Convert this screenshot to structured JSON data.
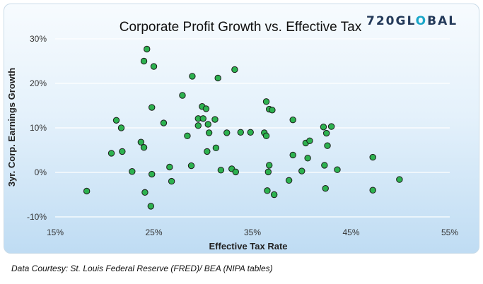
{
  "logo": {
    "pre": "720GL",
    "mark": "O",
    "post": "BAL"
  },
  "footer": {
    "source": "Data Courtesy: St. Louis Federal Reserve (FRED)/ BEA (NIPA tables)"
  },
  "colors": {
    "marker_fill": "#2db24f",
    "marker_stroke": "#1b1b1b",
    "grid": "#ffffff",
    "axis_text": "#333333",
    "logo_accent": "#1aa7c9",
    "logo_text": "#243a5a"
  },
  "chart_data": {
    "type": "scatter",
    "title": "Corporate Profit Growth vs. Effective Tax",
    "xlabel": "Effective Tax Rate",
    "ylabel": "3yr. Corp. Earnings Growth",
    "xlim": [
      15,
      55
    ],
    "ylim": [
      -10,
      30
    ],
    "x_ticks": [
      15,
      25,
      35,
      45,
      55
    ],
    "y_ticks": [
      -10,
      0,
      10,
      20,
      30
    ],
    "x_tick_labels": [
      "15%",
      "25%",
      "35%",
      "45%",
      "55%"
    ],
    "y_tick_labels": [
      "-10%",
      "0%",
      "10%",
      "20%",
      "30%"
    ],
    "grid": "horizontal",
    "legend": "none",
    "points": [
      [
        18.2,
        -4.2
      ],
      [
        20.7,
        4.3
      ],
      [
        21.2,
        11.7
      ],
      [
        21.7,
        10.0
      ],
      [
        21.8,
        4.7
      ],
      [
        22.8,
        0.2
      ],
      [
        23.7,
        6.8
      ],
      [
        24.0,
        25.0
      ],
      [
        24.0,
        5.6
      ],
      [
        24.1,
        -4.5
      ],
      [
        24.3,
        27.7
      ],
      [
        24.7,
        -7.6
      ],
      [
        24.8,
        14.6
      ],
      [
        24.8,
        -0.4
      ],
      [
        25.0,
        23.8
      ],
      [
        26.0,
        11.1
      ],
      [
        26.6,
        1.2
      ],
      [
        26.8,
        -2.0
      ],
      [
        27.9,
        17.3
      ],
      [
        28.4,
        8.2
      ],
      [
        28.8,
        1.5
      ],
      [
        28.9,
        21.6
      ],
      [
        29.5,
        12.1
      ],
      [
        29.5,
        10.5
      ],
      [
        29.9,
        14.8
      ],
      [
        30.0,
        12.1
      ],
      [
        30.3,
        14.3
      ],
      [
        30.4,
        4.7
      ],
      [
        30.5,
        10.8
      ],
      [
        30.6,
        8.9
      ],
      [
        31.2,
        11.9
      ],
      [
        31.3,
        5.5
      ],
      [
        31.5,
        21.2
      ],
      [
        31.8,
        0.5
      ],
      [
        32.4,
        8.9
      ],
      [
        32.9,
        0.8
      ],
      [
        33.2,
        23.1
      ],
      [
        33.3,
        0.1
      ],
      [
        33.8,
        9.0
      ],
      [
        34.8,
        9.0
      ],
      [
        36.2,
        8.9
      ],
      [
        36.4,
        15.9
      ],
      [
        36.4,
        8.2
      ],
      [
        36.5,
        -4.1
      ],
      [
        36.6,
        0.1
      ],
      [
        36.7,
        14.2
      ],
      [
        36.7,
        1.6
      ],
      [
        37.0,
        14.0
      ],
      [
        37.2,
        -5.0
      ],
      [
        38.7,
        -1.8
      ],
      [
        39.1,
        11.8
      ],
      [
        39.1,
        3.9
      ],
      [
        40.0,
        0.3
      ],
      [
        40.4,
        6.6
      ],
      [
        40.6,
        3.2
      ],
      [
        40.8,
        7.1
      ],
      [
        42.2,
        10.2
      ],
      [
        42.3,
        1.6
      ],
      [
        42.4,
        -3.6
      ],
      [
        42.5,
        8.8
      ],
      [
        42.6,
        6.0
      ],
      [
        43.0,
        10.3
      ],
      [
        43.6,
        0.6
      ],
      [
        47.2,
        3.4
      ],
      [
        47.2,
        -4.0
      ],
      [
        49.9,
        -1.6
      ]
    ]
  }
}
